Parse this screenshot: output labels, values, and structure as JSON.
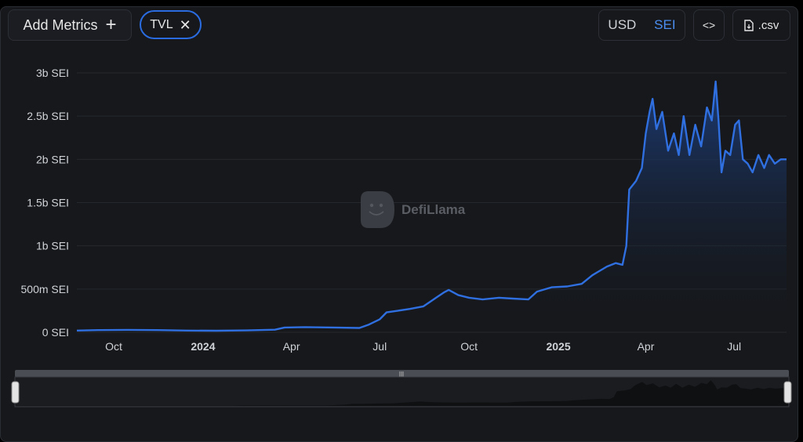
{
  "toolbar": {
    "add_metrics_label": "Add Metrics",
    "metric_chip_label": "TVL",
    "currency_options": [
      "USD",
      "SEI"
    ],
    "selected_currency": "SEI",
    "embed_label": "<>",
    "csv_label": ".csv"
  },
  "watermark": "DefiLlama",
  "colors": {
    "line": "#2f6fe0",
    "fill_top": "#1c3e7c",
    "accent": "#2a6ce0",
    "background": "#16181c"
  },
  "chart_data": {
    "type": "area",
    "title": "",
    "xlabel": "",
    "ylabel": "",
    "unit": "SEI",
    "x_range": [
      "2023-08-24",
      "2025-08-24"
    ],
    "ylim": [
      0,
      3000000000
    ],
    "y_ticks": [
      {
        "value": 0,
        "label": "0 SEI"
      },
      {
        "value": 500000000,
        "label": "500m SEI"
      },
      {
        "value": 1000000000,
        "label": "1b SEI"
      },
      {
        "value": 1500000000,
        "label": "1.5b SEI"
      },
      {
        "value": 2000000000,
        "label": "2b SEI"
      },
      {
        "value": 2500000000,
        "label": "2.5b SEI"
      },
      {
        "value": 3000000000,
        "label": "3b SEI"
      }
    ],
    "x_ticks": [
      {
        "date": "2023-10-01",
        "label": "Oct",
        "bold": false
      },
      {
        "date": "2024-01-01",
        "label": "2024",
        "bold": true
      },
      {
        "date": "2024-04-01",
        "label": "Apr",
        "bold": false
      },
      {
        "date": "2024-07-01",
        "label": "Jul",
        "bold": false
      },
      {
        "date": "2024-10-01",
        "label": "Oct",
        "bold": false
      },
      {
        "date": "2025-01-01",
        "label": "2025",
        "bold": true
      },
      {
        "date": "2025-04-01",
        "label": "Apr",
        "bold": false
      },
      {
        "date": "2025-07-01",
        "label": "Jul",
        "bold": false
      }
    ],
    "grid": true,
    "series": [
      {
        "values": [
          {
            "x": "2023-08-24",
            "y": 20000000
          },
          {
            "x": "2023-09-15",
            "y": 25000000
          },
          {
            "x": "2023-10-15",
            "y": 28000000
          },
          {
            "x": "2023-11-15",
            "y": 25000000
          },
          {
            "x": "2023-12-15",
            "y": 20000000
          },
          {
            "x": "2024-01-15",
            "y": 18000000
          },
          {
            "x": "2024-02-15",
            "y": 22000000
          },
          {
            "x": "2024-03-15",
            "y": 30000000
          },
          {
            "x": "2024-03-25",
            "y": 55000000
          },
          {
            "x": "2024-04-15",
            "y": 60000000
          },
          {
            "x": "2024-05-15",
            "y": 55000000
          },
          {
            "x": "2024-06-10",
            "y": 50000000
          },
          {
            "x": "2024-06-20",
            "y": 90000000
          },
          {
            "x": "2024-07-01",
            "y": 150000000
          },
          {
            "x": "2024-07-08",
            "y": 230000000
          },
          {
            "x": "2024-07-20",
            "y": 250000000
          },
          {
            "x": "2024-08-01",
            "y": 270000000
          },
          {
            "x": "2024-08-15",
            "y": 300000000
          },
          {
            "x": "2024-08-28",
            "y": 400000000
          },
          {
            "x": "2024-09-05",
            "y": 460000000
          },
          {
            "x": "2024-09-10",
            "y": 490000000
          },
          {
            "x": "2024-09-20",
            "y": 430000000
          },
          {
            "x": "2024-10-01",
            "y": 400000000
          },
          {
            "x": "2024-10-15",
            "y": 380000000
          },
          {
            "x": "2024-11-01",
            "y": 400000000
          },
          {
            "x": "2024-11-15",
            "y": 390000000
          },
          {
            "x": "2024-12-01",
            "y": 380000000
          },
          {
            "x": "2024-12-10",
            "y": 470000000
          },
          {
            "x": "2024-12-25",
            "y": 520000000
          },
          {
            "x": "2025-01-10",
            "y": 530000000
          },
          {
            "x": "2025-01-25",
            "y": 560000000
          },
          {
            "x": "2025-02-05",
            "y": 660000000
          },
          {
            "x": "2025-02-20",
            "y": 760000000
          },
          {
            "x": "2025-03-01",
            "y": 800000000
          },
          {
            "x": "2025-03-08",
            "y": 780000000
          },
          {
            "x": "2025-03-12",
            "y": 1000000000
          },
          {
            "x": "2025-03-15",
            "y": 1650000000
          },
          {
            "x": "2025-03-22",
            "y": 1750000000
          },
          {
            "x": "2025-03-28",
            "y": 1900000000
          },
          {
            "x": "2025-04-01",
            "y": 2300000000
          },
          {
            "x": "2025-04-05",
            "y": 2550000000
          },
          {
            "x": "2025-04-08",
            "y": 2700000000
          },
          {
            "x": "2025-04-12",
            "y": 2350000000
          },
          {
            "x": "2025-04-18",
            "y": 2550000000
          },
          {
            "x": "2025-04-24",
            "y": 2100000000
          },
          {
            "x": "2025-04-30",
            "y": 2300000000
          },
          {
            "x": "2025-05-05",
            "y": 2050000000
          },
          {
            "x": "2025-05-10",
            "y": 2500000000
          },
          {
            "x": "2025-05-16",
            "y": 2050000000
          },
          {
            "x": "2025-05-22",
            "y": 2400000000
          },
          {
            "x": "2025-05-28",
            "y": 2150000000
          },
          {
            "x": "2025-06-03",
            "y": 2600000000
          },
          {
            "x": "2025-06-08",
            "y": 2450000000
          },
          {
            "x": "2025-06-12",
            "y": 2900000000
          },
          {
            "x": "2025-06-15",
            "y": 2450000000
          },
          {
            "x": "2025-06-18",
            "y": 1850000000
          },
          {
            "x": "2025-06-22",
            "y": 2100000000
          },
          {
            "x": "2025-06-27",
            "y": 2050000000
          },
          {
            "x": "2025-07-02",
            "y": 2400000000
          },
          {
            "x": "2025-07-06",
            "y": 2450000000
          },
          {
            "x": "2025-07-10",
            "y": 2000000000
          },
          {
            "x": "2025-07-15",
            "y": 1950000000
          },
          {
            "x": "2025-07-20",
            "y": 1850000000
          },
          {
            "x": "2025-07-26",
            "y": 2050000000
          },
          {
            "x": "2025-08-01",
            "y": 1900000000
          },
          {
            "x": "2025-08-06",
            "y": 2050000000
          },
          {
            "x": "2025-08-12",
            "y": 1950000000
          },
          {
            "x": "2025-08-18",
            "y": 2000000000
          },
          {
            "x": "2025-08-24",
            "y": 2000000000
          }
        ]
      }
    ]
  }
}
